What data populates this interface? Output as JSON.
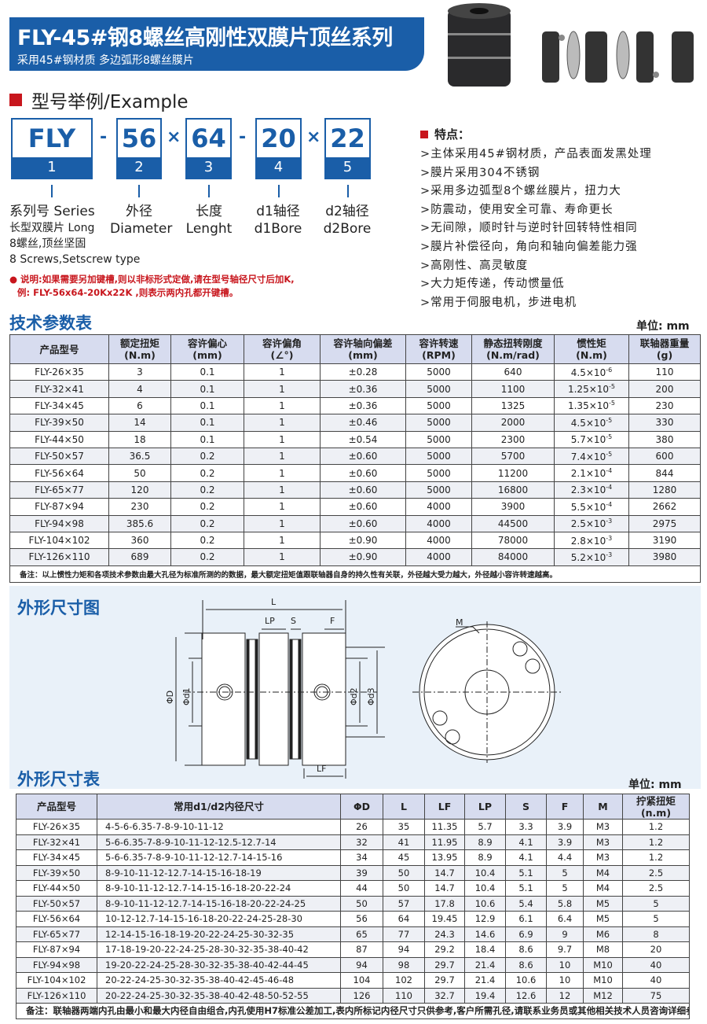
{
  "header": {
    "title": "FLY-45#钢8螺丝高刚性双膜片顶丝系列",
    "subtitle": "采用45#钢材质 多边弧形8螺丝膜片"
  },
  "example": {
    "title": "型号举例/Example",
    "parts": [
      {
        "value": "FLY",
        "index": "1"
      },
      {
        "value": "56",
        "index": "2"
      },
      {
        "value": "64",
        "index": "3"
      },
      {
        "value": "20",
        "index": "4"
      },
      {
        "value": "22",
        "index": "5"
      }
    ],
    "separators": [
      "-",
      "×",
      "-",
      "×"
    ],
    "labels": [
      {
        "line1": "系列号 Series",
        "line2": "长型双膜片 Long",
        "line3": "8螺丝,顶丝坚固",
        "line4": "8 Screws,Setscrew type"
      },
      {
        "line1": "外径",
        "line2": "Diameter"
      },
      {
        "line1": "长度",
        "line2": "Lenght"
      },
      {
        "line1": "d1轴径",
        "line2": "d1Bore"
      },
      {
        "line1": "d2轴径",
        "line2": "d2Bore"
      }
    ],
    "note_line1": "说明:如果需要另加键槽,则以非标形式定做,请在型号轴径尺寸后加K,",
    "note_line2": "例: FLY-56x64-20Kx22K ,则表示两内孔都开键槽。"
  },
  "features": {
    "title": "特点：",
    "items": [
      ">主体采用45#钢材质，产品表面发黑处理",
      ">膜片采用304不锈钢",
      ">采用多边弧型8个螺丝膜片，扭力大",
      ">防震动，使用安全可靠、寿命更长",
      ">无间隙，顺时针与逆时针回转特性相同",
      ">膜片补偿径向，角向和轴向偏差能力强",
      ">高刚性、高灵敏度",
      ">大力矩传递，传动惯量低",
      ">常用于伺服电机，步进电机"
    ]
  },
  "tech_table": {
    "title": "技术参数表",
    "unit": "单位: mm",
    "headers": [
      [
        "产品型号",
        ""
      ],
      [
        "额定扭矩",
        "(N.m)"
      ],
      [
        "容许偏心",
        "(mm)"
      ],
      [
        "容许偏角",
        "(∠°)"
      ],
      [
        "容许轴向偏差",
        "(mm)"
      ],
      [
        "容许转速",
        "(RPM)"
      ],
      [
        "静态扭转刚度",
        "(N.m/rad)"
      ],
      [
        "惯性矩",
        "(N.m)"
      ],
      [
        "联轴器重量",
        "(g)"
      ]
    ],
    "rows": [
      [
        "FLY-26×35",
        "3",
        "0.1",
        "1",
        "±0.28",
        "5000",
        "640",
        "4.5×10",
        "-6",
        "110"
      ],
      [
        "FLY-32×41",
        "4",
        "0.1",
        "1",
        "±0.36",
        "5000",
        "1100",
        "1.25×10",
        "-5",
        "200"
      ],
      [
        "FLY-34×45",
        "6",
        "0.1",
        "1",
        "±0.36",
        "5000",
        "1325",
        "1.35×10",
        "-5",
        "230"
      ],
      [
        "FLY-39×50",
        "14",
        "0.1",
        "1",
        "±0.46",
        "5000",
        "2000",
        "4.5×10",
        "-5",
        "330"
      ],
      [
        "FLY-44×50",
        "18",
        "0.1",
        "1",
        "±0.54",
        "5000",
        "2300",
        "5.7×10",
        "-5",
        "380"
      ],
      [
        "FLY-50×57",
        "36.5",
        "0.2",
        "1",
        "±0.60",
        "5000",
        "5700",
        "7.4×10",
        "-5",
        "600"
      ],
      [
        "FLY-56×64",
        "50",
        "0.2",
        "1",
        "±0.60",
        "5000",
        "11200",
        "2.1×10",
        "-4",
        "844"
      ],
      [
        "FLY-65×77",
        "120",
        "0.2",
        "1",
        "±0.60",
        "5000",
        "16800",
        "2.3×10",
        "-4",
        "1280"
      ],
      [
        "FLY-87×94",
        "230",
        "0.2",
        "1",
        "±0.60",
        "4000",
        "3900",
        "5.5×10",
        "-4",
        "2662"
      ],
      [
        "FLY-94×98",
        "385.6",
        "0.2",
        "1",
        "±0.60",
        "4000",
        "44500",
        "2.5×10",
        "-3",
        "2975"
      ],
      [
        "FLY-104×102",
        "360",
        "0.2",
        "1",
        "±0.90",
        "4000",
        "78000",
        "2.8×10",
        "-3",
        "3190"
      ],
      [
        "FLY-126×110",
        "689",
        "0.2",
        "1",
        "±0.90",
        "4000",
        "84000",
        "5.2×10",
        "-3",
        "3980"
      ]
    ],
    "note": "备注：以上惯性力矩和各项技术参数由最大孔径为标准所测的的数据，最大额定扭矩值跟联轴器自身的持久性有关联，外径越大受力越大，外径越小容许转速越高。"
  },
  "diagram": {
    "title": "外形尺寸图",
    "labels": {
      "L": "L",
      "LP": "LP",
      "S": "S",
      "F": "F",
      "LF": "LF",
      "D": "ΦD",
      "d1": "Φd1",
      "d2": "Φd2",
      "d3": "Φd3",
      "M": "M"
    }
  },
  "dim_table": {
    "title": "外形尺寸表",
    "unit": "单位: mm",
    "headers": [
      "产品型号",
      "常用d1/d2内径尺寸",
      "ΦD",
      "L",
      "LF",
      "LP",
      "S",
      "F",
      "M",
      "拧紧扭矩",
      "(n.m)"
    ],
    "rows": [
      [
        "FLY-26×35",
        "4-5-6-6.35-7-8-9-10-11-12",
        "26",
        "35",
        "11.35",
        "5.7",
        "3.3",
        "3.9",
        "M3",
        "1.2"
      ],
      [
        "FLY-32×41",
        "5-6-6.35-7-8-9-10-11-12-12.5-12.7-14",
        "32",
        "41",
        "11.95",
        "8.9",
        "4.1",
        "3.9",
        "M3",
        "1.2"
      ],
      [
        "FLY-34×45",
        "5-6-6.35-7-8-9-10-11-12-12.7-14-15-16",
        "34",
        "45",
        "13.95",
        "8.9",
        "4.1",
        "4.4",
        "M3",
        "1.2"
      ],
      [
        "FLY-39×50",
        "8-9-10-11-12-12.7-14-15-16-18-19",
        "39",
        "50",
        "14.7",
        "10.4",
        "5.1",
        "5",
        "M4",
        "2.5"
      ],
      [
        "FLY-44×50",
        "8-9-10-11-12-12.7-14-15-16-18-20-22-24",
        "44",
        "50",
        "14.7",
        "10.4",
        "5.1",
        "5",
        "M4",
        "2.5"
      ],
      [
        "FLY-50×57",
        "8-9-10-11-12-12.7-14-15-16-18-20-22-24-25",
        "50",
        "57",
        "17.8",
        "10.6",
        "5.4",
        "5.8",
        "M5",
        "5"
      ],
      [
        "FLY-56×64",
        "10-12-12.7-14-15-16-18-20-22-24-25-28-30",
        "56",
        "64",
        "19.45",
        "12.9",
        "6.1",
        "6.4",
        "M5",
        "5"
      ],
      [
        "FLY-65×77",
        "12-14-15-16-18-19-20-22-24-25-30-32-35",
        "65",
        "77",
        "24.3",
        "14.6",
        "6.9",
        "9",
        "M6",
        "8"
      ],
      [
        "FLY-87×94",
        "17-18-19-20-22-24-25-28-30-32-35-38-40-42",
        "87",
        "94",
        "29.2",
        "18.4",
        "8.6",
        "9.7",
        "M8",
        "20"
      ],
      [
        "FLY-94×98",
        "19-20-22-24-25-28-30-32-35-38-40-42-44-45",
        "94",
        "98",
        "29.7",
        "21.4",
        "8.6",
        "10",
        "M10",
        "40"
      ],
      [
        "FLY-104×102",
        "20-22-24-25-30-32-35-38-40-42-45-46-48",
        "104",
        "102",
        "29.7",
        "21.4",
        "10.6",
        "10",
        "M10",
        "40"
      ],
      [
        "FLY-126×110",
        "20-22-24-25-30-32-35-38-40-42-48-50-52-55",
        "126",
        "110",
        "32.7",
        "19.4",
        "12.6",
        "12",
        "M12",
        "75"
      ]
    ],
    "note": "备注：联轴器两端内孔由最小和最大内径自由组合,内孔使用H7标准公差加工,表内所标记内径尺寸只供参考,客户所需孔径,请联系业务员或其他相关技术人员咨询详细参数."
  },
  "colors": {
    "brand_blue": "#1a5ea8",
    "accent_red": "#c8161d",
    "header_fill": "#d7dcef"
  }
}
